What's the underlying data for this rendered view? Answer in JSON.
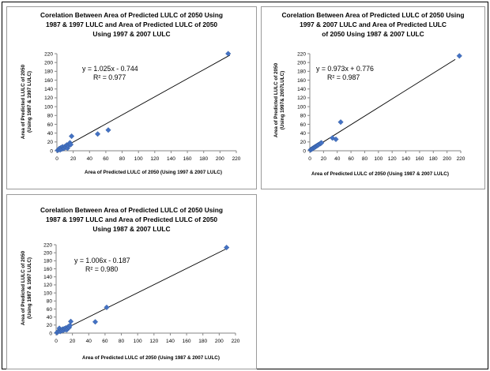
{
  "chart_data": [
    {
      "type": "scatter",
      "title_lines": [
        "Corelation Between Area of Predicted LULC of 2050 Using",
        "1987 & 1997 LULC and Area of Predicted LULC of 2050",
        "Using 1997 & 2007 LULC"
      ],
      "xlabel": "Area of Predicted LULC of 2050 (Using 1997 & 2007 LULC)",
      "ylabel_lines": [
        "Area of Predicted LULC of 2050",
        "(Using 1987 & 1997 LULC)"
      ],
      "xlim": [
        0,
        220
      ],
      "ylim": [
        0,
        220
      ],
      "xticks": [
        0,
        20,
        40,
        60,
        80,
        100,
        120,
        140,
        160,
        180,
        200,
        220
      ],
      "yticks": [
        0,
        20,
        40,
        60,
        80,
        100,
        120,
        140,
        160,
        180,
        200,
        220
      ],
      "equation": "y = 1.025x - 0.744",
      "r2": "R² = 0.977",
      "trend": {
        "slope": 1.025,
        "intercept": -0.744
      },
      "point_color": "#4472c4",
      "points": [
        [
          1,
          1
        ],
        [
          2,
          3
        ],
        [
          3,
          5
        ],
        [
          4,
          2
        ],
        [
          5,
          7
        ],
        [
          6,
          4
        ],
        [
          7,
          9
        ],
        [
          8,
          5
        ],
        [
          9,
          6
        ],
        [
          10,
          10
        ],
        [
          11,
          8
        ],
        [
          12,
          13
        ],
        [
          13,
          6
        ],
        [
          14,
          11
        ],
        [
          15,
          15
        ],
        [
          16,
          18
        ],
        [
          17,
          14
        ],
        [
          18,
          33
        ],
        [
          50,
          38
        ],
        [
          63,
          47
        ],
        [
          210,
          220
        ]
      ]
    },
    {
      "type": "scatter",
      "title_lines": [
        "Corelation Between Area of Predicted LULC of 2050 Using",
        "1997 & 2007 LULC and Area of Predicted LULC",
        "of 2050 Using 1987 & 2007 LULC"
      ],
      "xlabel": "Area of Predicted LULC of 2050 (Using 1987 & 2007 LULC)",
      "ylabel_lines": [
        "Area of Predicted LULC of 2050",
        "(Using 1997& 2007LULC)"
      ],
      "xlim": [
        0,
        220
      ],
      "ylim": [
        0,
        220
      ],
      "xticks": [
        0,
        20,
        40,
        60,
        80,
        100,
        120,
        140,
        160,
        180,
        200,
        220
      ],
      "yticks": [
        0,
        20,
        40,
        60,
        80,
        100,
        120,
        140,
        160,
        180,
        200,
        220
      ],
      "equation": "y = 0.973x + 0.776",
      "r2": "R² = 0.987",
      "trend": {
        "slope": 0.973,
        "intercept": 0.776
      },
      "point_color": "#4472c4",
      "points": [
        [
          1,
          2
        ],
        [
          2,
          3
        ],
        [
          3,
          4
        ],
        [
          4,
          5
        ],
        [
          5,
          6
        ],
        [
          6,
          7
        ],
        [
          7,
          8
        ],
        [
          8,
          9
        ],
        [
          9,
          10
        ],
        [
          10,
          11
        ],
        [
          11,
          12
        ],
        [
          12,
          13
        ],
        [
          13,
          14
        ],
        [
          15,
          16
        ],
        [
          16,
          17
        ],
        [
          17,
          18
        ],
        [
          33,
          29
        ],
        [
          38,
          26
        ],
        [
          45,
          65
        ],
        [
          218,
          215
        ]
      ]
    },
    {
      "type": "scatter",
      "title_lines": [
        "Corelation Between Area of Predicted LULC of 2050 Using",
        "1987 & 1997 LULC and Area of Predicted LULC of 2050",
        "Using 1987 & 2007 LULC"
      ],
      "xlabel": "Area of Predicted LULC of 2050 (Using 1987 & 2007 LULC)",
      "ylabel_lines": [
        "Area of Predicted LULC of 2050",
        "(Using 1987 & 1997 LULC)"
      ],
      "xlim": [
        0,
        220
      ],
      "ylim": [
        0,
        220
      ],
      "xticks": [
        0,
        20,
        40,
        60,
        80,
        100,
        120,
        140,
        160,
        180,
        200,
        220
      ],
      "yticks": [
        0,
        20,
        40,
        60,
        80,
        100,
        120,
        140,
        160,
        180,
        200,
        220
      ],
      "equation": "y = 1.006x - 0.187",
      "r2": "R² = 0.980",
      "trend": {
        "slope": 1.006,
        "intercept": -0.187
      },
      "point_color": "#4472c4",
      "points": [
        [
          1,
          1
        ],
        [
          2,
          3
        ],
        [
          3,
          5
        ],
        [
          4,
          12
        ],
        [
          5,
          4
        ],
        [
          6,
          8
        ],
        [
          7,
          6
        ],
        [
          8,
          10
        ],
        [
          9,
          7
        ],
        [
          10,
          11
        ],
        [
          11,
          9
        ],
        [
          12,
          13
        ],
        [
          13,
          8
        ],
        [
          14,
          12
        ],
        [
          15,
          16
        ],
        [
          16,
          14
        ],
        [
          17,
          19
        ],
        [
          18,
          29
        ],
        [
          48,
          28
        ],
        [
          62,
          64
        ],
        [
          209,
          213
        ]
      ]
    }
  ]
}
